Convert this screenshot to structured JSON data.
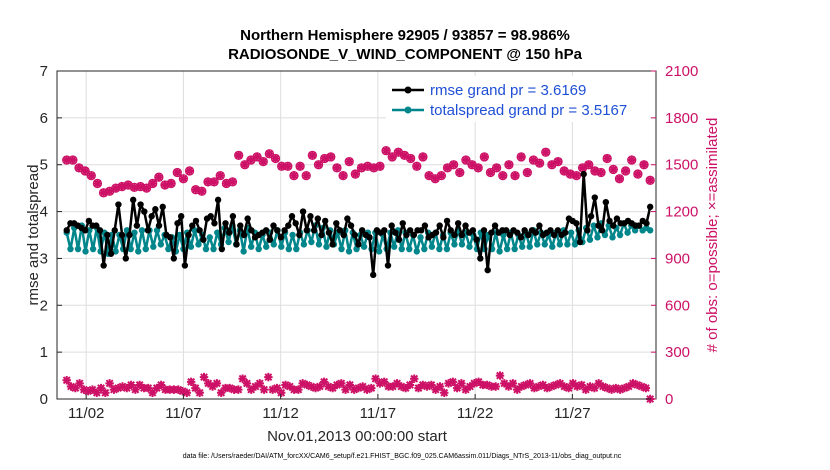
{
  "chart_data": {
    "type": "line",
    "title_line1": "Northern Hemisphere 92905 / 93857 = 98.986%",
    "title_line2": "RADIOSONDE_V_WIND_COMPONENT @ 150 hPa",
    "xlabel": "Nov.01,2013 00:00:00 start",
    "ylabel": "rmse and totalspread",
    "ylabel_right": "# of obs: o=possible; ×=assimilated",
    "footnote": "data file: /Users/raeder/DAI/ATM_forcXX/CAM6_setup/f.e21.FHIST_BGC.f09_025.CAM6assim.011/Diags_NTrS_2013-11/obs_diag_output.nc",
    "xlim": [
      0.5,
      31.3
    ],
    "ylim": [
      0,
      7
    ],
    "ylim_right": [
      0,
      2100
    ],
    "x_ticks": [
      2,
      7,
      12,
      17,
      22,
      27
    ],
    "x_tick_labels": [
      "11/02",
      "11/07",
      "11/12",
      "11/17",
      "11/22",
      "11/27"
    ],
    "y_ticks": [
      0,
      1,
      2,
      3,
      4,
      5,
      6,
      7
    ],
    "y_tick_labels": [
      "0",
      "1",
      "2",
      "3",
      "4",
      "5",
      "6",
      "7"
    ],
    "y_right_ticks": [
      0,
      300,
      600,
      900,
      1200,
      1500,
      1800,
      2100
    ],
    "y_right_tick_labels": [
      "0",
      "300",
      "600",
      "900",
      "1200",
      "1500",
      "1800",
      "2100"
    ],
    "colors": {
      "rmse": "#000000",
      "spread": "#00868b",
      "obs": "#cc1166",
      "legend_text": "#1f4fd6"
    },
    "series": [
      {
        "name": "rmse grand pr = 3.6169",
        "axis": "left",
        "values": [
          3.6,
          3.75,
          3.75,
          3.7,
          3.65,
          3.6,
          3.8,
          3.7,
          3.7,
          3.6,
          2.85,
          3.5,
          3.1,
          3.6,
          4.15,
          3.5,
          3.0,
          3.5,
          4.25,
          3.7,
          4.15,
          4.0,
          3.6,
          3.9,
          4.05,
          3.7,
          4.1,
          3.5,
          3.45,
          3.0,
          3.75,
          3.9,
          2.85,
          3.5,
          3.7,
          3.8,
          3.6,
          3.4,
          3.85,
          3.9,
          3.75,
          4.25,
          3.2,
          3.75,
          3.55,
          3.9,
          3.3,
          3.7,
          3.5,
          3.85,
          3.6,
          3.45,
          3.5,
          3.55,
          3.6,
          3.4,
          3.7,
          3.6,
          3.45,
          3.6,
          3.7,
          3.9,
          3.75,
          3.5,
          4.0,
          3.6,
          3.9,
          3.6,
          3.85,
          3.5,
          3.8,
          3.55,
          3.3,
          3.75,
          3.6,
          3.5,
          3.85,
          3.7,
          3.5,
          3.3,
          3.6,
          3.5,
          3.45,
          2.65,
          3.6,
          3.55,
          3.6,
          2.85,
          3.7,
          3.55,
          3.4,
          3.75,
          3.5,
          3.6,
          3.5,
          3.6,
          3.6,
          3.7,
          3.45,
          3.5,
          3.55,
          3.7,
          3.45,
          3.8,
          3.6,
          3.5,
          3.75,
          3.5,
          3.7,
          3.55,
          3.6,
          3.4,
          3.0,
          3.6,
          2.75,
          3.55,
          3.7,
          3.55,
          3.6,
          3.6,
          3.5,
          3.6,
          3.55,
          3.45,
          3.6,
          3.5,
          3.6,
          3.55,
          3.7,
          3.5,
          3.55,
          3.6,
          3.5,
          3.6,
          3.5,
          3.55,
          3.85,
          3.8,
          3.75,
          3.35,
          4.8,
          3.6,
          3.9,
          4.3,
          3.7,
          3.6,
          4.2,
          3.8,
          3.7,
          3.85,
          3.75,
          3.75,
          3.8,
          3.75,
          3.7,
          3.7,
          3.8,
          3.75,
          4.1
        ]
      },
      {
        "name": "totalspread grand pr = 3.5167",
        "axis": "left",
        "values": [
          3.55,
          3.2,
          3.65,
          3.2,
          3.7,
          3.15,
          3.6,
          3.2,
          3.65,
          3.15,
          3.55,
          3.1,
          3.5,
          3.15,
          3.5,
          3.2,
          3.6,
          3.2,
          3.55,
          3.15,
          3.6,
          3.2,
          3.6,
          3.25,
          3.6,
          3.3,
          3.5,
          3.2,
          3.45,
          3.15,
          3.5,
          3.2,
          3.55,
          3.25,
          3.6,
          3.3,
          3.5,
          3.2,
          3.45,
          3.2,
          3.55,
          3.3,
          3.65,
          3.35,
          3.7,
          3.3,
          3.6,
          3.15,
          3.65,
          3.25,
          3.55,
          3.2,
          3.5,
          3.25,
          3.55,
          3.3,
          3.6,
          3.25,
          3.55,
          3.2,
          3.5,
          3.2,
          3.55,
          3.3,
          3.6,
          3.35,
          3.7,
          3.3,
          3.65,
          3.25,
          3.6,
          3.3,
          3.55,
          3.2,
          3.6,
          3.15,
          3.55,
          3.2,
          3.5,
          3.25,
          3.55,
          3.2,
          3.55,
          3.15,
          3.5,
          3.2,
          3.55,
          3.25,
          3.6,
          3.2,
          3.55,
          3.2,
          3.5,
          3.15,
          3.45,
          3.2,
          3.55,
          3.25,
          3.55,
          3.2,
          3.5,
          3.2,
          3.55,
          3.3,
          3.6,
          3.3,
          3.55,
          3.25,
          3.5,
          3.2,
          3.55,
          3.2,
          3.5,
          3.2,
          3.55,
          3.15,
          3.5,
          3.2,
          3.55,
          3.2,
          3.5,
          3.25,
          3.55,
          3.25,
          3.6,
          3.3,
          3.55,
          3.3,
          3.5,
          3.25,
          3.55,
          3.3,
          3.6,
          3.3,
          3.55,
          3.3,
          3.6,
          3.35,
          3.65,
          3.4,
          3.7,
          3.45,
          3.75,
          3.5,
          3.7,
          3.45,
          3.65,
          3.5,
          3.75,
          3.55,
          3.7,
          3.6,
          3.7,
          3.6,
          3.65,
          3.6
        ]
      },
      {
        "name": "possible obs",
        "axis": "right",
        "values": [
          1530,
          1530,
          1480,
          1460,
          1430,
          1380,
          1320,
          1330,
          1350,
          1360,
          1370,
          1355,
          1360,
          1350,
          1380,
          1420,
          1370,
          1380,
          1450,
          1410,
          1460,
          1340,
          1330,
          1390,
          1390,
          1430,
          1380,
          1390,
          1560,
          1500,
          1530,
          1550,
          1520,
          1570,
          1540,
          1490,
          1490,
          1430,
          1490,
          1430,
          1560,
          1500,
          1540,
          1550,
          1480,
          1430,
          1520,
          1440,
          1480,
          1490,
          1480,
          1490,
          1590,
          1550,
          1580,
          1560,
          1540,
          1490,
          1550,
          1430,
          1410,
          1430,
          1480,
          1500,
          1450,
          1530,
          1500,
          1480,
          1550,
          1450,
          1480,
          1430,
          1500,
          1430,
          1550,
          1450,
          1530,
          1510,
          1580,
          1500,
          1520,
          1460,
          1440,
          1430,
          1480,
          1500,
          1460,
          1450,
          1540,
          1470,
          1410,
          1460,
          1530,
          1440,
          1500,
          1400
        ]
      },
      {
        "name": "assimilated obs",
        "axis": "right",
        "values": [
          120,
          80,
          70,
          100,
          60,
          50,
          60,
          40,
          70,
          40,
          100,
          60,
          70,
          80,
          70,
          90,
          60,
          90,
          70,
          70,
          40,
          70,
          90,
          60,
          60,
          60,
          60,
          50,
          40,
          110,
          70,
          40,
          140,
          100,
          80,
          100,
          40,
          70,
          70,
          60,
          60,
          130,
          100,
          60,
          80,
          100,
          60,
          140,
          60,
          70,
          40,
          90,
          80,
          60,
          60,
          100,
          90,
          80,
          70,
          80,
          110,
          80,
          70,
          90,
          100,
          60,
          90,
          60,
          70,
          80,
          60,
          70,
          130,
          100,
          110,
          80,
          80,
          100,
          80,
          70,
          90,
          130,
          70,
          90,
          80,
          90,
          60,
          80,
          40,
          100,
          110,
          70,
          100,
          60,
          80,
          100,
          110,
          90,
          90,
          80,
          80,
          150,
          100,
          80,
          100,
          60,
          80,
          90,
          100,
          70,
          80,
          90,
          70,
          80,
          90,
          100,
          80,
          70,
          100,
          80,
          90,
          60,
          80,
          70,
          100,
          80,
          70,
          60,
          70,
          60,
          70,
          80,
          100,
          90,
          80,
          70,
          0
        ]
      }
    ]
  }
}
